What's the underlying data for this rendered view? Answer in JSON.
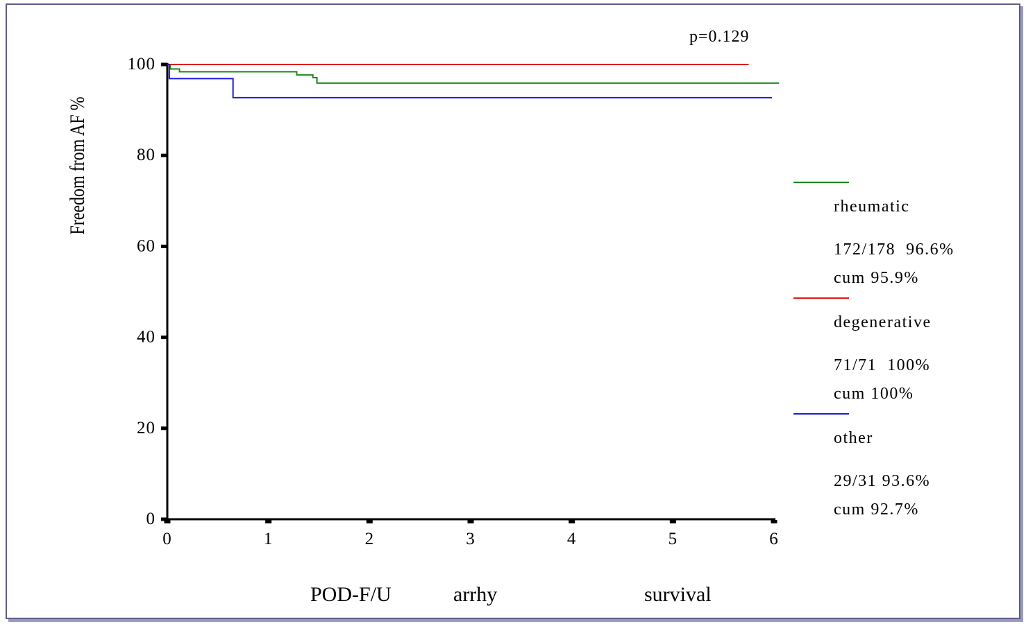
{
  "chart_data": {
    "type": "line",
    "step": true,
    "annotation": "p=0.129",
    "ylabel": "Freedom from AF %",
    "xlabel_parts": [
      "POD-F/U",
      "arrhy",
      "survival"
    ],
    "xlim": [
      0,
      6
    ],
    "ylim": [
      0,
      100
    ],
    "x_ticks": [
      "0",
      "1",
      "2",
      "3",
      "4",
      "5",
      "6"
    ],
    "y_ticks": [
      "0",
      "20",
      "40",
      "60",
      "80",
      "100"
    ],
    "grid": false,
    "legend_position": "right",
    "series": [
      {
        "name": "rheumatic",
        "color": "#1a8a1a",
        "summary": "172/178  96.6%",
        "cum": "cum 95.9%",
        "points": [
          [
            0,
            100
          ],
          [
            0.03,
            99.0
          ],
          [
            0.12,
            98.4
          ],
          [
            1.28,
            97.7
          ],
          [
            1.44,
            97.1
          ],
          [
            1.48,
            95.9
          ],
          [
            6.05,
            95.9
          ]
        ]
      },
      {
        "name": "degenerative",
        "color": "#e01818",
        "summary": "71/71  100%",
        "cum": "cum 100%",
        "points": [
          [
            0,
            100
          ],
          [
            5.75,
            100
          ]
        ]
      },
      {
        "name": "other",
        "color": "#1a1ae0",
        "summary": "29/31 93.6%",
        "cum": "cum 92.7%",
        "points": [
          [
            0,
            100
          ],
          [
            0.02,
            96.9
          ],
          [
            0.65,
            92.7
          ],
          [
            5.98,
            92.7
          ]
        ]
      }
    ]
  }
}
